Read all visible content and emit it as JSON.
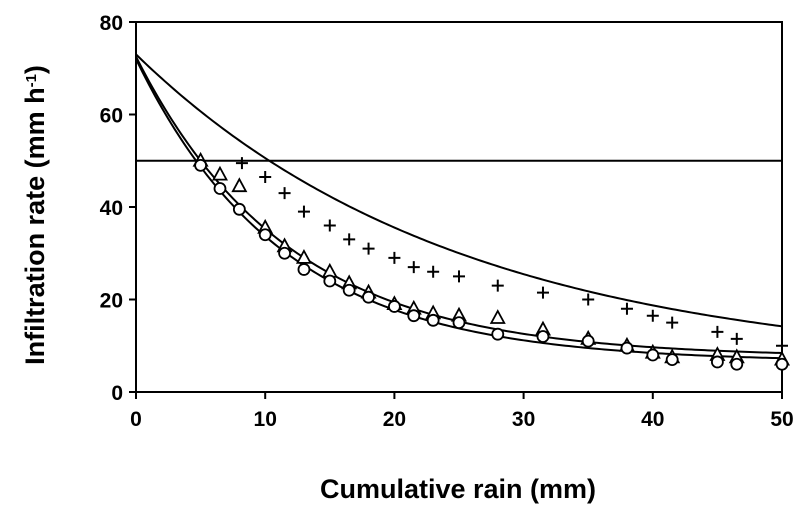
{
  "chart_data": {
    "type": "scatter",
    "title": "",
    "xlabel": "Cumulative rain (mm)",
    "ylabel_main": "Infiltration rate (mm h",
    "ylabel_sup": "-1",
    "ylabel_close": ")",
    "xlim": [
      0,
      50
    ],
    "ylim": [
      0,
      80
    ],
    "xticks": [
      0,
      10,
      20,
      30,
      40,
      50
    ],
    "yticks": [
      0,
      20,
      40,
      60,
      80
    ],
    "grid": false,
    "reference_line_y": 50,
    "series": [
      {
        "marker": "plus",
        "points": [
          [
            5,
            49
          ],
          [
            8.2,
            49.5
          ],
          [
            10,
            46.5
          ],
          [
            11.5,
            43
          ],
          [
            13,
            39
          ],
          [
            15,
            36
          ],
          [
            16.5,
            33
          ],
          [
            18,
            31
          ],
          [
            20,
            29
          ],
          [
            21.5,
            27
          ],
          [
            23,
            26
          ],
          [
            25,
            25
          ],
          [
            28,
            23
          ],
          [
            31.5,
            21.5
          ],
          [
            35,
            20
          ],
          [
            38,
            18
          ],
          [
            40,
            16.5
          ],
          [
            41.5,
            15
          ],
          [
            45,
            13
          ],
          [
            46.5,
            11.5
          ],
          [
            50,
            10
          ]
        ],
        "fit": {
          "y0": 73,
          "yinf": 5,
          "k": 0.04
        }
      },
      {
        "marker": "triangle",
        "points": [
          [
            5,
            50
          ],
          [
            6.5,
            47
          ],
          [
            8,
            44.5
          ],
          [
            10,
            35.5
          ],
          [
            11.5,
            31.5
          ],
          [
            13,
            29
          ],
          [
            15,
            26
          ],
          [
            16.5,
            23.5
          ],
          [
            18,
            21.5
          ],
          [
            20,
            19
          ],
          [
            21.5,
            18
          ],
          [
            23,
            17
          ],
          [
            25,
            16.5
          ],
          [
            28,
            16
          ],
          [
            31.5,
            13.5
          ],
          [
            35,
            11.5
          ],
          [
            38,
            10
          ],
          [
            40,
            8.5
          ],
          [
            41.5,
            7.5
          ],
          [
            45,
            8
          ],
          [
            46.5,
            7.5
          ],
          [
            50,
            7
          ]
        ],
        "fit": {
          "y0": 72.5,
          "yinf": 7.5,
          "k": 0.085
        }
      },
      {
        "marker": "circle",
        "points": [
          [
            5,
            49
          ],
          [
            6.5,
            44
          ],
          [
            8,
            39.5
          ],
          [
            10,
            34
          ],
          [
            11.5,
            30
          ],
          [
            13,
            26.5
          ],
          [
            15,
            24
          ],
          [
            16.5,
            22
          ],
          [
            18,
            20.5
          ],
          [
            20,
            18.5
          ],
          [
            21.5,
            16.5
          ],
          [
            23,
            15.5
          ],
          [
            25,
            15
          ],
          [
            28,
            12.5
          ],
          [
            31.5,
            12
          ],
          [
            35,
            11
          ],
          [
            38,
            9.5
          ],
          [
            40,
            8
          ],
          [
            41.5,
            7
          ],
          [
            45,
            6.5
          ],
          [
            46.5,
            6
          ],
          [
            50,
            6
          ]
        ],
        "fit": {
          "y0": 72,
          "yinf": 6.5,
          "k": 0.088
        }
      }
    ]
  }
}
